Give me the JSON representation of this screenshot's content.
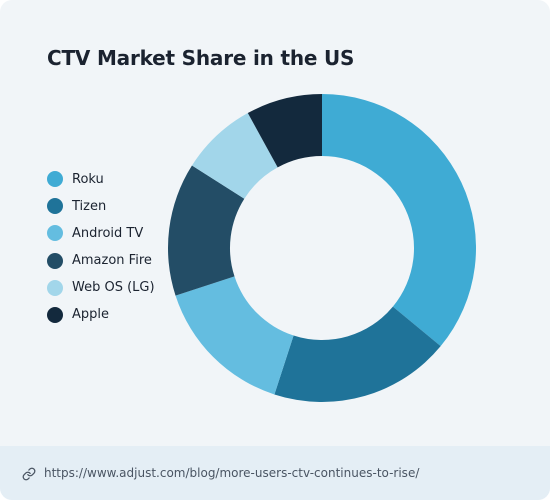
{
  "chart_data": {
    "type": "pie",
    "title": "CTV Market Share in the US",
    "categories": [
      "Roku",
      "Tizen",
      "Android TV",
      "Amazon Fire",
      "Web OS (LG)",
      "Apple"
    ],
    "values": [
      36,
      19,
      15,
      14,
      8,
      8
    ],
    "colors": [
      "#3fabd4",
      "#1f7399",
      "#64bde0",
      "#234d66",
      "#a2d6ea",
      "#13293d"
    ],
    "legend_position": "left",
    "donut": true
  },
  "footer": {
    "icon": "link-icon",
    "url": "https://www.adjust.com/blog/more-users-ctv-continues-to-rise/"
  }
}
